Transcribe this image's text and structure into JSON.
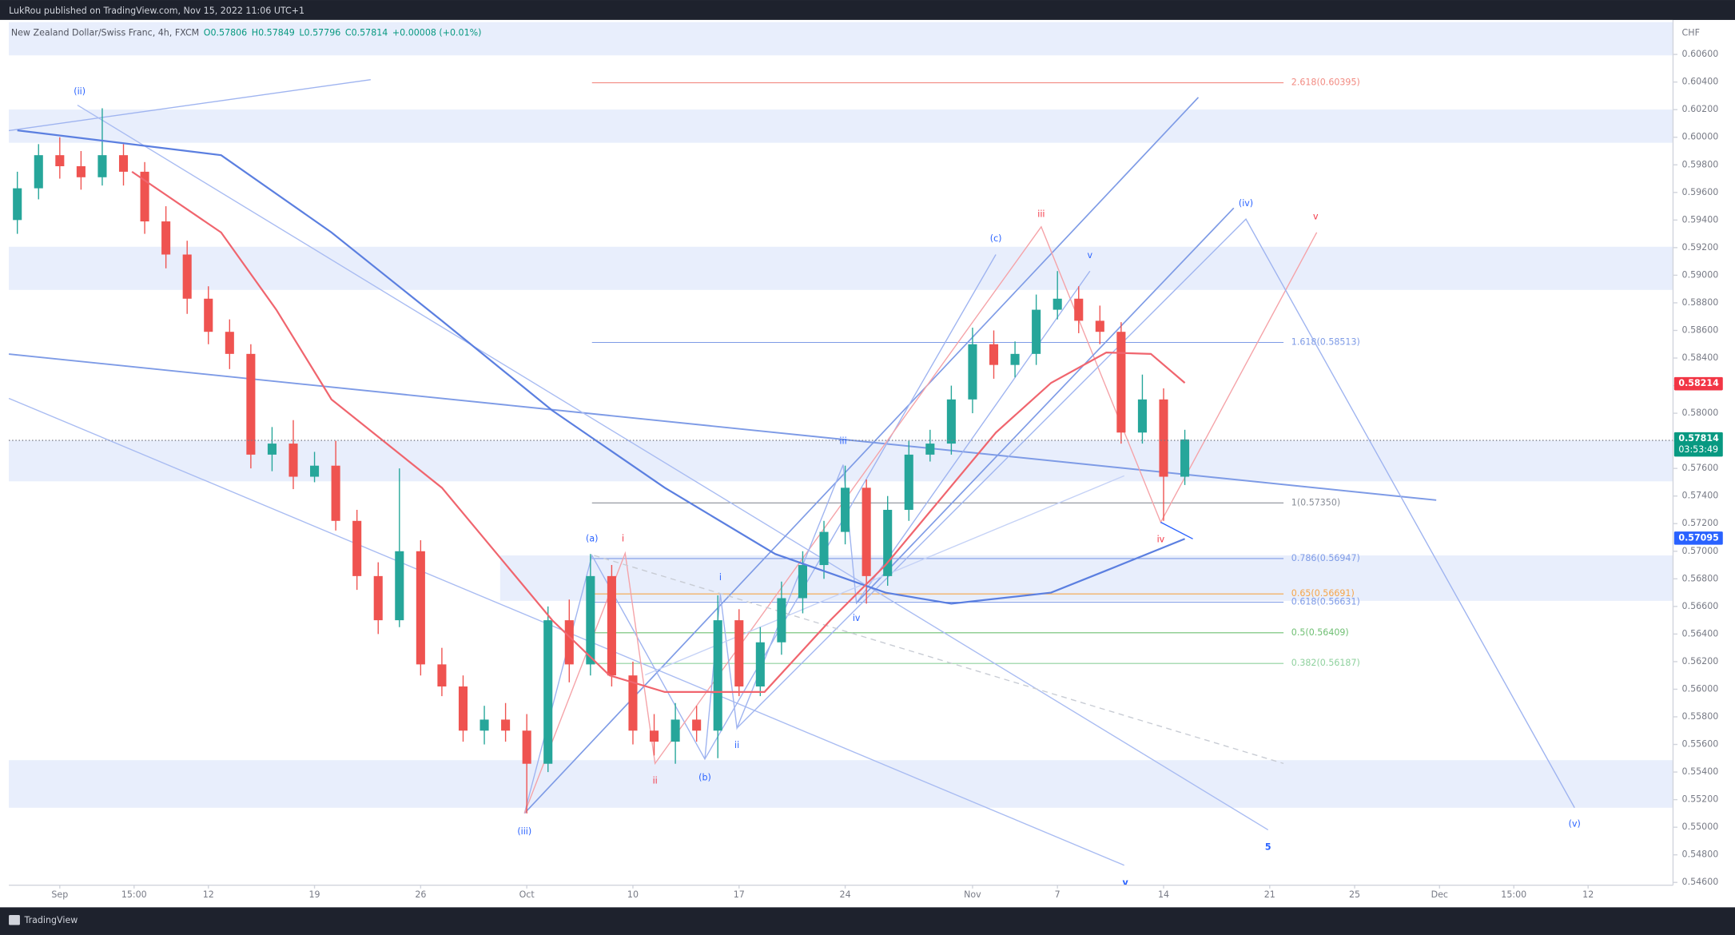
{
  "header": {
    "publisher": "LukRou published on TradingView.com, Nov 15, 2022 11:06 UTC+1",
    "brand": "TradingView"
  },
  "chart_data": {
    "type": "candlestick",
    "legend": {
      "symbol": "New Zealand Dollar/Swiss Franc, 4h, FXCM",
      "open": "O0.57806",
      "high": "H0.57849",
      "low": "L0.57796",
      "close": "C0.57814",
      "change": "+0.00008 (+0.01%)"
    },
    "y_axis_label": "CHF",
    "xlim": [
      -0.4,
      78
    ],
    "ylim": [
      0.5458,
      0.6085
    ],
    "xticks": [
      {
        "value": 2,
        "label": "Sep"
      },
      {
        "value": 5.5,
        "label": "15:00"
      },
      {
        "value": 9,
        "label": "12"
      },
      {
        "value": 14,
        "label": "19"
      },
      {
        "value": 19,
        "label": "26"
      },
      {
        "value": 24,
        "label": "Oct"
      },
      {
        "value": 29,
        "label": "10"
      },
      {
        "value": 34,
        "label": "17"
      },
      {
        "value": 39,
        "label": "24"
      },
      {
        "value": 45,
        "label": "Nov"
      },
      {
        "value": 49,
        "label": "7"
      },
      {
        "value": 54,
        "label": "14"
      },
      {
        "value": 59,
        "label": "21"
      },
      {
        "value": 63,
        "label": "25"
      },
      {
        "value": 67,
        "label": "Dec"
      },
      {
        "value": 70.5,
        "label": "15:00"
      },
      {
        "value": 74,
        "label": "12"
      }
    ],
    "yticks": [
      {
        "value": 0.606,
        "label": "0.60600"
      },
      {
        "value": 0.604,
        "label": "0.60400"
      },
      {
        "value": 0.602,
        "label": "0.60200"
      },
      {
        "value": 0.6,
        "label": "0.60000"
      },
      {
        "value": 0.598,
        "label": "0.59800"
      },
      {
        "value": 0.596,
        "label": "0.59600"
      },
      {
        "value": 0.594,
        "label": "0.59400"
      },
      {
        "value": 0.592,
        "label": "0.59200"
      },
      {
        "value": 0.59,
        "label": "0.59000"
      },
      {
        "value": 0.588,
        "label": "0.58800"
      },
      {
        "value": 0.586,
        "label": "0.58600"
      },
      {
        "value": 0.584,
        "label": "0.58400"
      },
      {
        "value": 0.582,
        "label": "0.58200"
      },
      {
        "value": 0.58,
        "label": "0.58000"
      },
      {
        "value": 0.578,
        "label": "0.57800"
      },
      {
        "value": 0.576,
        "label": "0.57600"
      },
      {
        "value": 0.574,
        "label": "0.57400"
      },
      {
        "value": 0.572,
        "label": "0.57200"
      },
      {
        "value": 0.57,
        "label": "0.57000"
      },
      {
        "value": 0.568,
        "label": "0.56800"
      },
      {
        "value": 0.566,
        "label": "0.56600"
      },
      {
        "value": 0.564,
        "label": "0.56400"
      },
      {
        "value": 0.562,
        "label": "0.56200"
      },
      {
        "value": 0.56,
        "label": "0.56000"
      },
      {
        "value": 0.558,
        "label": "0.55800"
      },
      {
        "value": 0.556,
        "label": "0.55600"
      },
      {
        "value": 0.554,
        "label": "0.55400"
      },
      {
        "value": 0.552,
        "label": "0.55200"
      },
      {
        "value": 0.55,
        "label": "0.55000"
      },
      {
        "value": 0.548,
        "label": "0.54800"
      },
      {
        "value": 0.546,
        "label": "0.54600"
      }
    ],
    "up_color": "#26a69a",
    "down_color": "#ef5350",
    "open": [
      0.594,
      0.5963,
      0.5987,
      0.5979,
      0.5971,
      0.5987,
      0.5975,
      0.5939,
      0.5915,
      0.5883,
      0.5859,
      0.5843,
      0.577,
      0.5778,
      0.5754,
      0.5762,
      0.5722,
      0.5682,
      0.565,
      0.57,
      0.5618,
      0.5602,
      0.557,
      0.5578,
      0.557,
      0.5546,
      0.565,
      0.5618,
      0.5682,
      0.561,
      0.557,
      0.5562,
      0.5578,
      0.557,
      0.565,
      0.5602,
      0.5634,
      0.5666,
      0.569,
      0.5714,
      0.5746,
      0.5682,
      0.573,
      0.577,
      0.5778,
      0.581,
      0.585,
      0.5835,
      0.5843,
      0.5875,
      0.5883,
      0.5867,
      0.5859,
      0.5786,
      0.581,
      0.5754
    ],
    "high": [
      0.5975,
      0.5995,
      0.6,
      0.599,
      0.6021,
      0.5995,
      0.5982,
      0.595,
      0.5925,
      0.5892,
      0.5868,
      0.585,
      0.579,
      0.5795,
      0.5772,
      0.578,
      0.573,
      0.5692,
      0.576,
      0.5708,
      0.563,
      0.561,
      0.5588,
      0.559,
      0.5582,
      0.566,
      0.5665,
      0.5698,
      0.569,
      0.562,
      0.5582,
      0.559,
      0.5588,
      0.5668,
      0.5658,
      0.5645,
      0.5678,
      0.57,
      0.5722,
      0.5762,
      0.5752,
      0.574,
      0.578,
      0.5788,
      0.582,
      0.5862,
      0.586,
      0.5852,
      0.5886,
      0.5903,
      0.5892,
      0.5878,
      0.5866,
      0.5828,
      0.5818,
      0.5788
    ],
    "low": [
      0.593,
      0.5955,
      0.597,
      0.5962,
      0.5965,
      0.5965,
      0.593,
      0.5905,
      0.5872,
      0.585,
      0.5832,
      0.576,
      0.5758,
      0.5745,
      0.575,
      0.5715,
      0.5672,
      0.564,
      0.5645,
      0.561,
      0.5595,
      0.5562,
      0.556,
      0.5562,
      0.551,
      0.554,
      0.5605,
      0.561,
      0.5602,
      0.556,
      0.5552,
      0.5546,
      0.5562,
      0.555,
      0.5595,
      0.5595,
      0.5625,
      0.5655,
      0.568,
      0.5705,
      0.5662,
      0.5675,
      0.5722,
      0.5765,
      0.577,
      0.58,
      0.5825,
      0.5826,
      0.5835,
      0.5868,
      0.5858,
      0.585,
      0.5778,
      0.5778,
      0.5722,
      0.5748
    ],
    "close": [
      0.5963,
      0.5987,
      0.5979,
      0.5971,
      0.5987,
      0.5975,
      0.5939,
      0.5915,
      0.5883,
      0.5859,
      0.5843,
      0.577,
      0.5778,
      0.5754,
      0.5762,
      0.5722,
      0.5682,
      0.565,
      0.57,
      0.5618,
      0.5602,
      0.557,
      0.5578,
      0.557,
      0.5546,
      0.565,
      0.5618,
      0.5682,
      0.561,
      0.557,
      0.5562,
      0.5578,
      0.557,
      0.565,
      0.5602,
      0.5634,
      0.5666,
      0.569,
      0.5714,
      0.5746,
      0.5682,
      0.573,
      0.577,
      0.5778,
      0.581,
      0.585,
      0.5835,
      0.5843,
      0.5875,
      0.5883,
      0.5867,
      0.5859,
      0.5786,
      0.581,
      0.5754,
      0.5781
    ],
    "series": [
      {
        "color": "#5b7fe0",
        "x": [
          0,
          9.6,
          14.8,
          20,
          25.2,
          30.5,
          35.7,
          40.9,
          44,
          48.7,
          51.3,
          55
        ],
        "values": [
          0.6005,
          0.5987,
          0.5931,
          0.5867,
          0.5802,
          0.5746,
          0.5698,
          0.567,
          0.5662,
          0.567,
          0.5686,
          0.5709
        ]
      },
      {
        "color": "#f0656e",
        "x": [
          5.4,
          9.6,
          12.2,
          14.8,
          20,
          25.2,
          27.9,
          30.5,
          35.2,
          38.3,
          40.9,
          43.5,
          46.1,
          48.7,
          51.3,
          53.4,
          55
        ],
        "values": [
          0.5975,
          0.5931,
          0.5875,
          0.581,
          0.5746,
          0.565,
          0.561,
          0.5598,
          0.5598,
          0.565,
          0.569,
          0.5738,
          0.5786,
          0.5822,
          0.5844,
          0.5843,
          0.5822
        ]
      }
    ],
    "price_tags": [
      {
        "value": 0.58214,
        "label": "0.58214",
        "color": "#f23645"
      },
      {
        "value": 0.57814,
        "label": "0.57814",
        "countdown": "03:53:49",
        "color": "#089981"
      },
      {
        "value": 0.57095,
        "label": "0.57095",
        "color": "#2962ff"
      }
    ],
    "fib_levels": [
      {
        "value": 0.60395,
        "label": "2.618(0.60395)",
        "color": "#f28b82"
      },
      {
        "value": 0.58513,
        "label": "1.618(0.58513)",
        "color": "#7e9be6"
      },
      {
        "value": 0.5735,
        "label": "1(0.57350)",
        "color": "#8a8f98"
      },
      {
        "value": 0.56947,
        "label": "0.786(0.56947)",
        "color": "#7e9be6"
      },
      {
        "value": 0.56691,
        "label": "0.65(0.56691)",
        "color": "#f5a54a"
      },
      {
        "value": 0.56631,
        "label": "0.618(0.56631)",
        "color": "#7e9be6"
      },
      {
        "value": 0.56409,
        "label": "0.5(0.56409)",
        "color": "#6fbf73"
      },
      {
        "value": 0.56187,
        "label": "0.382(0.56187)",
        "color": "#8fd19e"
      }
    ],
    "annotations": [
      {
        "text": "(ii)",
        "color": "#2962ff"
      },
      {
        "text": "(iii)",
        "color": "#2962ff"
      },
      {
        "text": "(a)",
        "color": "#2962ff"
      },
      {
        "text": "i",
        "color": "#f23645"
      },
      {
        "text": "(b)",
        "color": "#2962ff"
      },
      {
        "text": "ii",
        "color": "#f23645"
      },
      {
        "text": "i",
        "color": "#2962ff"
      },
      {
        "text": "ii",
        "color": "#2962ff"
      },
      {
        "text": "iii",
        "color": "#2962ff"
      },
      {
        "text": "iv",
        "color": "#2962ff"
      },
      {
        "text": "(c)",
        "color": "#2962ff"
      },
      {
        "text": "iii",
        "color": "#f23645"
      },
      {
        "text": "v",
        "color": "#2962ff"
      },
      {
        "text": "iv",
        "color": "#f23645"
      },
      {
        "text": "(iv)",
        "color": "#2962ff"
      },
      {
        "text": "v",
        "color": "#f23645"
      },
      {
        "text": "(v)",
        "color": "#2962ff"
      },
      {
        "text": "5",
        "color": "#2962ff"
      },
      {
        "text": "v",
        "color": "#2962ff"
      }
    ]
  }
}
